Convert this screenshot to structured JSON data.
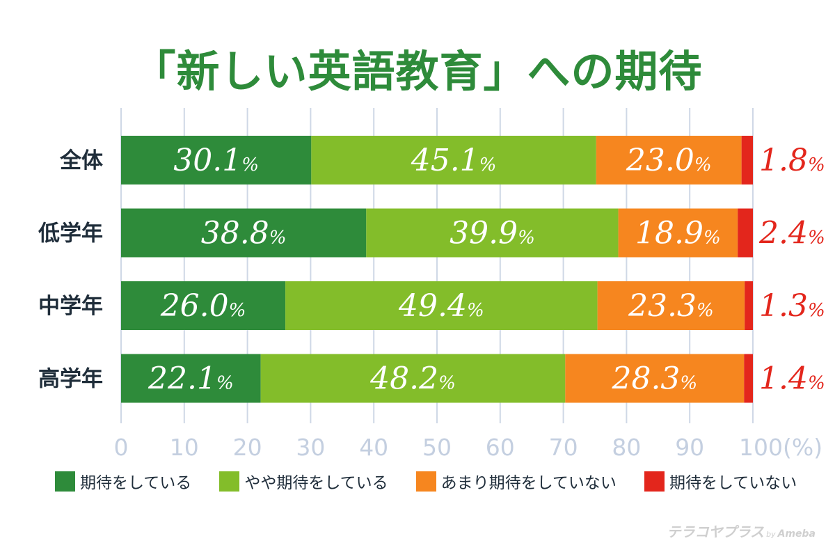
{
  "chart_data": {
    "type": "bar",
    "orientation": "horizontal",
    "stacked": true,
    "title": "「新しい英語教育」への期待",
    "categories": [
      "全体",
      "低学年",
      "中学年",
      "高学年"
    ],
    "series": [
      {
        "name": "期待をしている",
        "color": "#2e8b3a",
        "values": [
          30.1,
          38.8,
          26.0,
          22.1
        ]
      },
      {
        "name": "やや期待をしている",
        "color": "#83bd2a",
        "values": [
          45.1,
          39.9,
          49.4,
          48.2
        ]
      },
      {
        "name": "あまり期待をしていない",
        "color": "#f6861f",
        "values": [
          23.0,
          18.9,
          23.3,
          28.3
        ]
      },
      {
        "name": "期待をしていない",
        "color": "#e3261c",
        "values": [
          1.8,
          2.4,
          1.3,
          1.4
        ]
      }
    ],
    "value_suffix": "%",
    "xlim": [
      0,
      100
    ],
    "xticks": [
      0,
      10,
      20,
      30,
      40,
      50,
      60,
      70,
      80,
      90,
      100
    ],
    "xlabel_suffix": "(%)",
    "grid": true,
    "legend_position": "bottom"
  },
  "watermark": {
    "brand": "テラコヤプラス",
    "by": "by",
    "company": "Ameba"
  }
}
